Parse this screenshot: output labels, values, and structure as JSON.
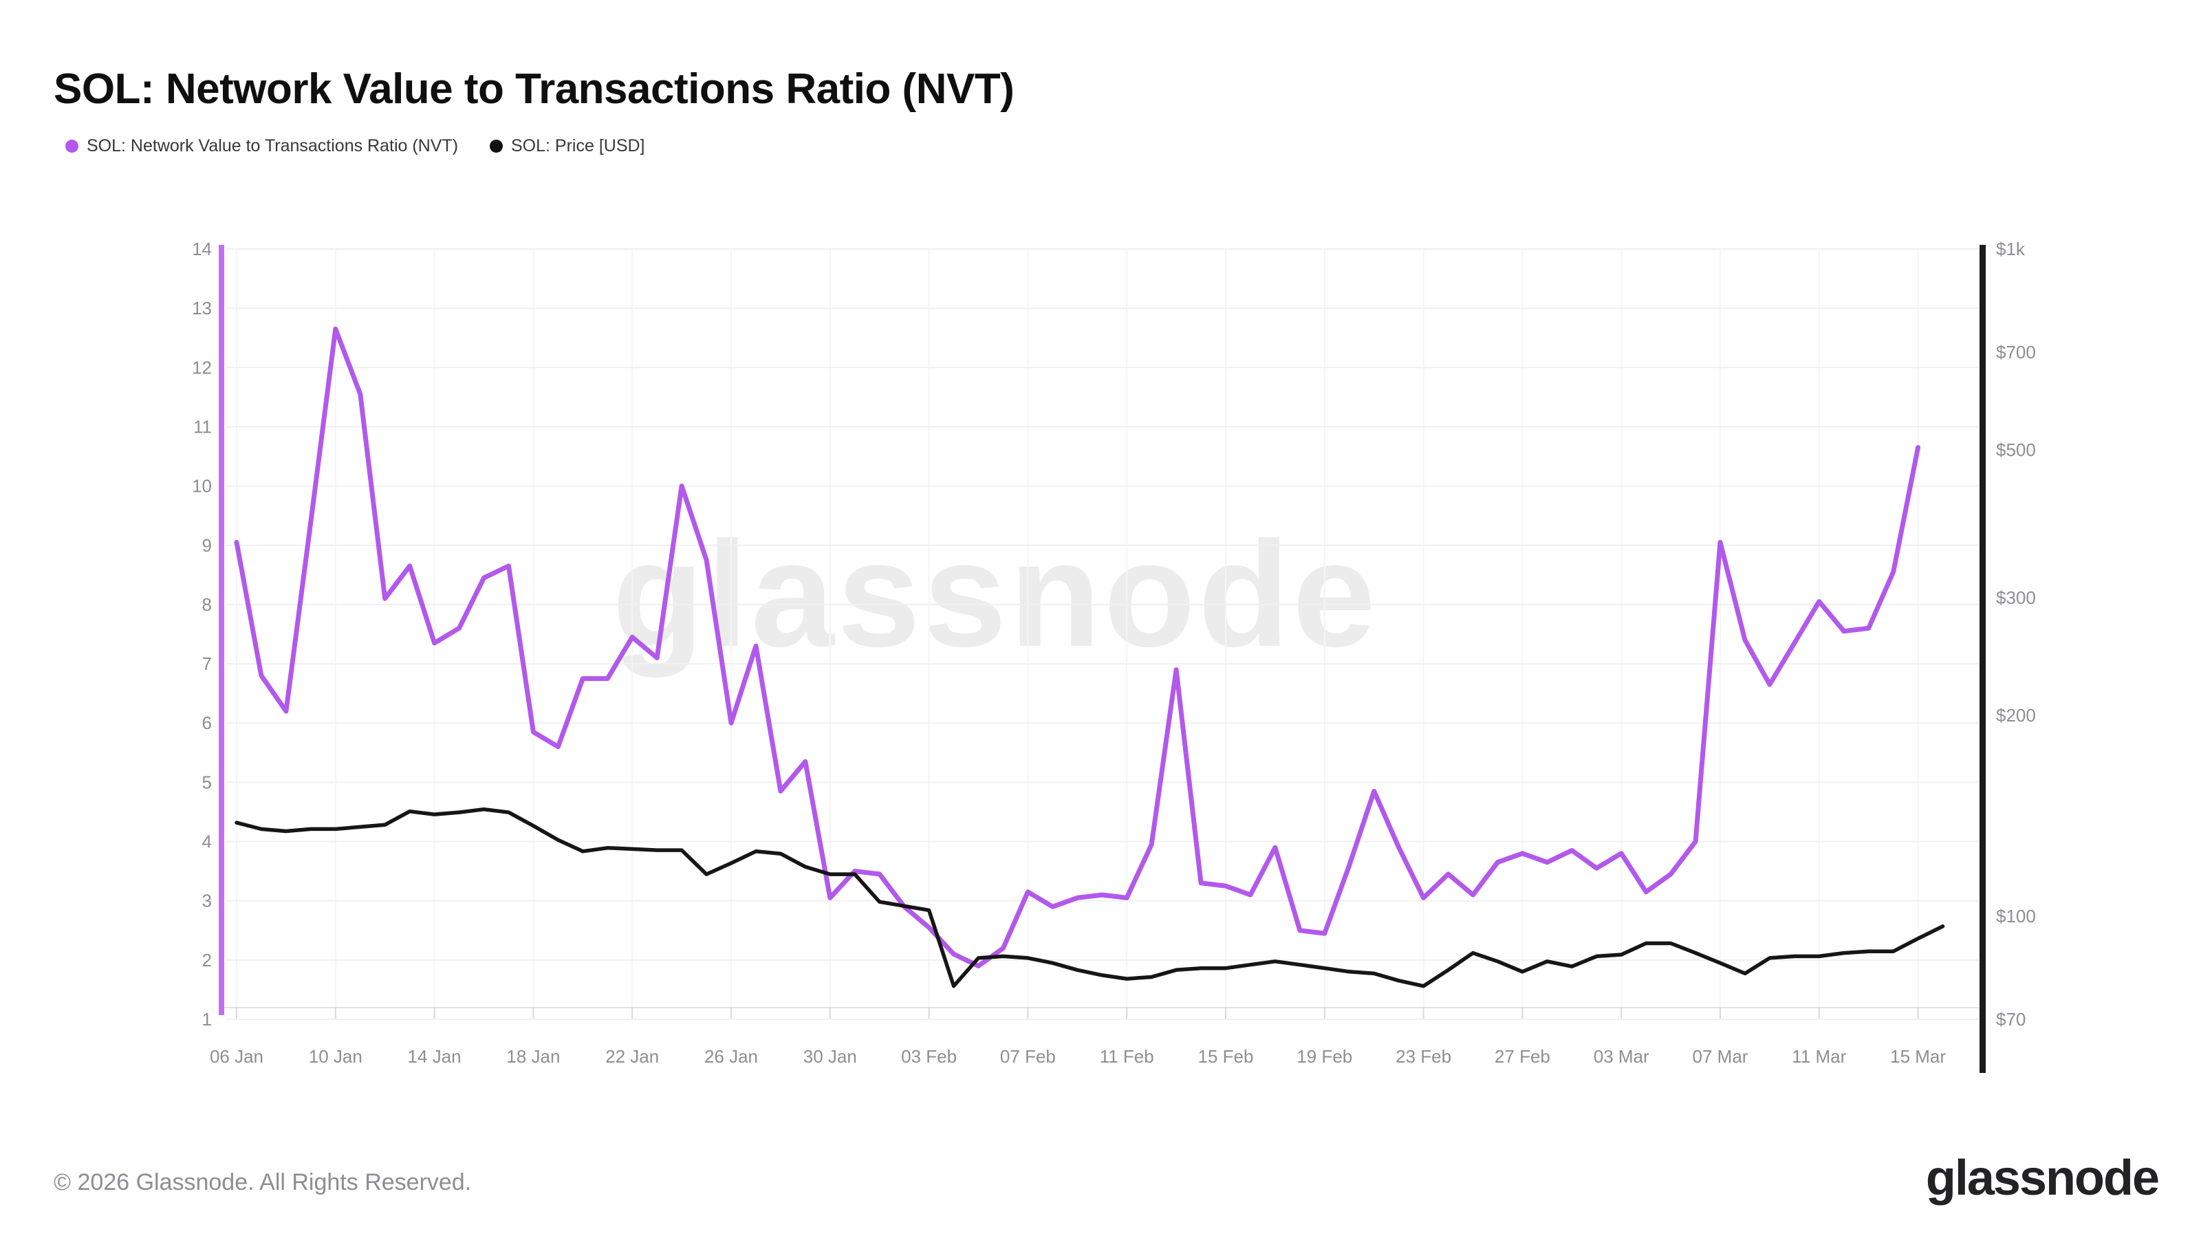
{
  "header": {
    "title": "SOL: Network Value to Transactions Ratio (NVT)"
  },
  "legend": [
    {
      "label": "SOL: Network Value to Transactions Ratio (NVT)",
      "color": "#b259ec"
    },
    {
      "label": "SOL: Price [USD]",
      "color": "#111111"
    }
  ],
  "watermark": {
    "text": "glassnode"
  },
  "footer": {
    "copyright": "© 2026 Glassnode. All Rights Reserved.",
    "logo_text": "glassnode"
  },
  "chart_data": {
    "type": "line",
    "title": "SOL: Network Value to Transactions Ratio (NVT)",
    "x_start_date": "06 Jan",
    "x_end_date": "16 Mar",
    "x_ticks": [
      {
        "label": "06 Jan",
        "day": 0
      },
      {
        "label": "10 Jan",
        "day": 4
      },
      {
        "label": "14 Jan",
        "day": 8
      },
      {
        "label": "18 Jan",
        "day": 12
      },
      {
        "label": "22 Jan",
        "day": 16
      },
      {
        "label": "26 Jan",
        "day": 20
      },
      {
        "label": "30 Jan",
        "day": 24
      },
      {
        "label": "03 Feb",
        "day": 28
      },
      {
        "label": "07 Feb",
        "day": 32
      },
      {
        "label": "11 Feb",
        "day": 36
      },
      {
        "label": "15 Feb",
        "day": 40
      },
      {
        "label": "19 Feb",
        "day": 44
      },
      {
        "label": "23 Feb",
        "day": 48
      },
      {
        "label": "27 Feb",
        "day": 52
      },
      {
        "label": "03 Mar",
        "day": 56
      },
      {
        "label": "07 Mar",
        "day": 60
      },
      {
        "label": "11 Mar",
        "day": 64
      },
      {
        "label": "15 Mar",
        "day": 68
      }
    ],
    "left_axis": {
      "min": 1,
      "max": 14,
      "ticks": [
        14,
        13,
        12,
        11,
        10,
        9,
        8,
        7,
        6,
        5,
        4,
        3,
        2,
        1
      ],
      "color": "#c36ff2"
    },
    "right_axis": {
      "scale": "log",
      "top": 1000,
      "bottom": 70,
      "color": "#1c1c1c",
      "ticks": [
        {
          "label": "$1k",
          "value": 1000
        },
        {
          "label": "$700",
          "value": 700
        },
        {
          "label": "$500",
          "value": 500
        },
        {
          "label": "$300",
          "value": 300
        },
        {
          "label": "$200",
          "value": 200
        },
        {
          "label": "$100",
          "value": 100
        },
        {
          "label": "$70",
          "value": 70
        }
      ]
    },
    "grid": {
      "horizontal": true,
      "vertical": true
    },
    "legend_position": "top-left",
    "series": [
      {
        "name": "SOL: Network Value to Transactions Ratio (NVT)",
        "axis": "left",
        "color": "#b259ec",
        "stroke_width": 7,
        "start_day": 0,
        "values": [
          9.05,
          6.8,
          6.2,
          9.4,
          12.65,
          11.55,
          8.1,
          8.65,
          7.35,
          7.6,
          8.45,
          8.65,
          5.85,
          5.6,
          6.75,
          6.75,
          7.45,
          7.1,
          10.0,
          8.75,
          6.0,
          7.3,
          4.85,
          5.35,
          3.05,
          3.5,
          3.45,
          2.9,
          2.55,
          2.1,
          1.9,
          2.2,
          3.15,
          2.9,
          3.05,
          3.1,
          3.05,
          3.95,
          6.9,
          3.3,
          3.25,
          3.1,
          3.9,
          2.5,
          2.45,
          3.6,
          4.85,
          3.9,
          3.05,
          3.45,
          3.1,
          3.65,
          3.8,
          3.65,
          3.85,
          3.55,
          3.8,
          3.15,
          3.45,
          4.0,
          9.05,
          7.4,
          6.65,
          7.35,
          8.05,
          7.55,
          7.6,
          8.55,
          10.65
        ]
      },
      {
        "name": "SOL: Price [USD]",
        "axis": "right",
        "color": "#161616",
        "stroke_width": 5.5,
        "start_day": 0,
        "values": [
          138,
          135,
          134,
          135,
          135,
          136,
          137,
          143.5,
          142,
          143,
          144.5,
          143,
          136.5,
          130,
          125,
          126.5,
          126,
          125.5,
          125.5,
          115.5,
          120,
          125,
          124,
          118.5,
          115.5,
          115.5,
          105,
          103.5,
          102,
          78.5,
          86.5,
          87,
          86.5,
          85,
          83,
          81.5,
          80.5,
          81,
          83,
          83.5,
          83.5,
          84.5,
          85.5,
          84.5,
          83.5,
          82.5,
          82,
          80,
          78.5,
          83,
          88,
          85.5,
          82.5,
          85.5,
          84,
          87,
          87.5,
          91,
          91,
          88,
          85,
          82,
          86.5,
          87,
          87,
          88,
          88.5,
          88.5,
          92.5,
          96.5
        ]
      }
    ]
  }
}
